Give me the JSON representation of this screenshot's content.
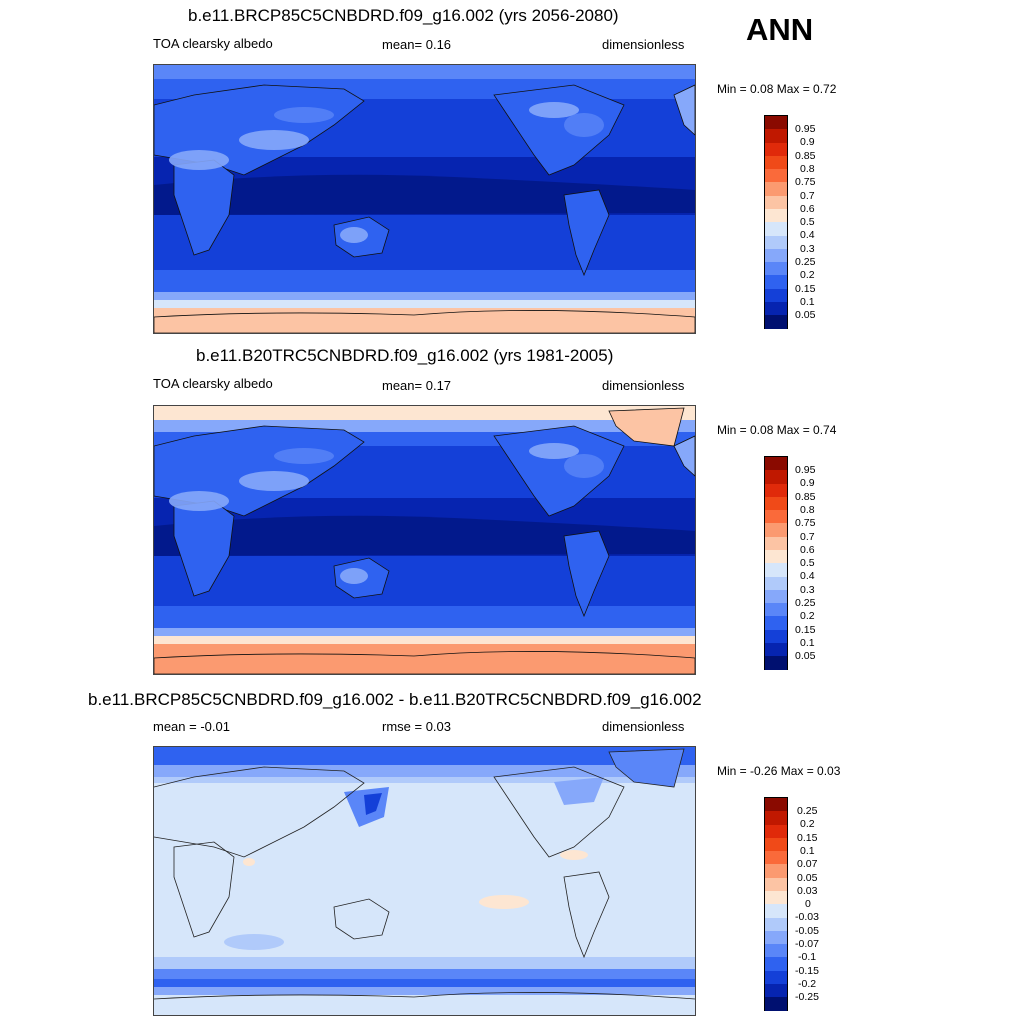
{
  "season": "ANN",
  "panels": [
    {
      "title": "b.e11.BRCP85C5CNBDRD.f09_g16.002 (yrs 2056-2080)",
      "left_label": "TOA clearsky albedo",
      "center_label": "mean=   0.16",
      "right_label": "dimensionless",
      "minmax": "Min =   0.08 Max =   0.72",
      "colorbar": {
        "labels": [
          "0.95",
          "0.9",
          "0.85",
          "0.8",
          "0.75",
          "0.7",
          "0.6",
          "0.5",
          "0.4",
          "0.3",
          "0.25",
          "0.2",
          "0.15",
          "0.1",
          "0.05"
        ],
        "colors": [
          "#8a0a00",
          "#c01800",
          "#e02a0a",
          "#f04a18",
          "#fa6a3a",
          "#fb9a70",
          "#fcc4a4",
          "#fde6d2",
          "#d6e6fa",
          "#b0cafa",
          "#86a8fa",
          "#5a86f8",
          "#2f62f0",
          "#1440d8",
          "#0624b0",
          "#001070"
        ]
      }
    },
    {
      "title": "b.e11.B20TRC5CNBDRD.f09_g16.002 (yrs 1981-2005)",
      "left_label": "TOA clearsky albedo",
      "center_label": "mean=   0.17",
      "right_label": "dimensionless",
      "minmax": "Min =   0.08 Max =   0.74",
      "colorbar": {
        "labels": [
          "0.95",
          "0.9",
          "0.85",
          "0.8",
          "0.75",
          "0.7",
          "0.6",
          "0.5",
          "0.4",
          "0.3",
          "0.25",
          "0.2",
          "0.15",
          "0.1",
          "0.05"
        ],
        "colors": [
          "#8a0a00",
          "#c01800",
          "#e02a0a",
          "#f04a18",
          "#fa6a3a",
          "#fb9a70",
          "#fcc4a4",
          "#fde6d2",
          "#d6e6fa",
          "#b0cafa",
          "#86a8fa",
          "#5a86f8",
          "#2f62f0",
          "#1440d8",
          "#0624b0",
          "#001070"
        ]
      }
    },
    {
      "title": "b.e11.BRCP85C5CNBDRD.f09_g16.002 - b.e11.B20TRC5CNBDRD.f09_g16.002",
      "left_label": "mean =  -0.01",
      "center_label": "rmse =   0.03",
      "right_label": "dimensionless",
      "minmax": "Min =  -0.26 Max =   0.03",
      "colorbar": {
        "labels": [
          "0.25",
          "0.2",
          "0.15",
          "0.1",
          "0.07",
          "0.05",
          "0.03",
          "0",
          "-0.03",
          "-0.05",
          "-0.07",
          "-0.1",
          "-0.15",
          "-0.2",
          "-0.25"
        ],
        "colors": [
          "#8a0a00",
          "#c01800",
          "#e02a0a",
          "#f04a18",
          "#fa6a3a",
          "#fb9a70",
          "#fcc4a4",
          "#fde6d2",
          "#d6e6fa",
          "#b0cafa",
          "#86a8fa",
          "#5a86f8",
          "#2f62f0",
          "#1440d8",
          "#0624b0",
          "#001070"
        ]
      }
    }
  ]
}
